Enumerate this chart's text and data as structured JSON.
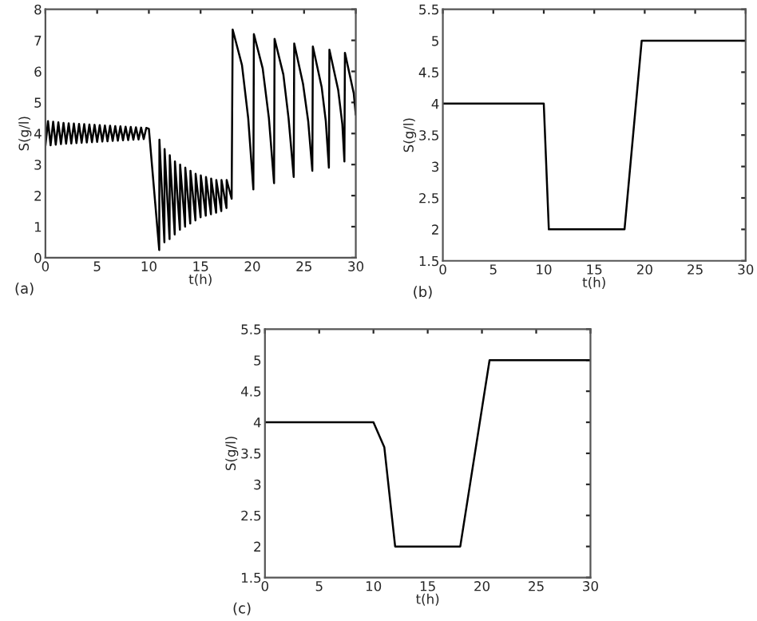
{
  "chart_data": [
    {
      "type": "line",
      "xlabel": "t(h)",
      "ylabel": "S(g/l)",
      "annotations": [
        "(a)"
      ],
      "xlim": [
        0,
        30
      ],
      "ylim": [
        0,
        8
      ],
      "xticks": [
        0,
        5,
        10,
        15,
        20,
        25,
        30
      ],
      "yticks": [
        0,
        1,
        2,
        3,
        4,
        5,
        6,
        7,
        8
      ],
      "grid": false,
      "legend": false,
      "series": [
        {
          "color": "#000000",
          "x": [
            0,
            0.25,
            0.5,
            0.75,
            1,
            1.25,
            1.5,
            1.75,
            2,
            2.25,
            2.5,
            2.75,
            3,
            3.25,
            3.5,
            3.75,
            4,
            4.25,
            4.5,
            4.75,
            5,
            5.25,
            5.5,
            5.75,
            6,
            6.25,
            6.5,
            6.75,
            7,
            7.25,
            7.5,
            7.75,
            8,
            8.25,
            8.5,
            8.75,
            9,
            9.25,
            9.5,
            9.75,
            10,
            11,
            11.02,
            11.5,
            11.52,
            12,
            12.02,
            12.5,
            12.52,
            13,
            13.02,
            13.5,
            13.52,
            14,
            14.02,
            14.5,
            14.52,
            15,
            15.02,
            15.5,
            15.52,
            16,
            16.02,
            16.5,
            16.52,
            17,
            17.02,
            17.5,
            17.52,
            18,
            18.1,
            19,
            19.6,
            20.1,
            20.15,
            21,
            21.6,
            22.1,
            22.15,
            23,
            23.5,
            24,
            24.05,
            24.9,
            25.4,
            25.8,
            25.85,
            26.7,
            27.1,
            27.4,
            27.45,
            28.3,
            28.7,
            28.9,
            28.95,
            29.8,
            30
          ],
          "values": [
            3.6,
            4.4,
            3.62,
            4.38,
            3.64,
            4.36,
            3.66,
            4.34,
            3.67,
            4.33,
            3.68,
            4.32,
            3.69,
            4.31,
            3.7,
            4.3,
            3.71,
            4.29,
            3.72,
            4.28,
            3.73,
            4.27,
            3.74,
            4.26,
            3.75,
            4.25,
            3.76,
            4.24,
            3.77,
            4.23,
            3.78,
            4.22,
            3.79,
            4.21,
            3.8,
            4.2,
            3.81,
            4.19,
            3.82,
            4.18,
            4.15,
            0.25,
            3.8,
            0.5,
            3.5,
            0.6,
            3.3,
            0.75,
            3.1,
            0.9,
            3.0,
            1.0,
            2.9,
            1.1,
            2.8,
            1.2,
            2.7,
            1.3,
            2.65,
            1.35,
            2.6,
            1.4,
            2.55,
            1.45,
            2.5,
            1.5,
            2.5,
            1.6,
            2.5,
            1.9,
            7.35,
            6.2,
            4.5,
            2.2,
            7.2,
            6.1,
            4.5,
            2.4,
            7.05,
            5.9,
            4.5,
            2.6,
            6.9,
            5.6,
            4.4,
            2.8,
            6.8,
            5.5,
            4.4,
            2.9,
            6.7,
            5.4,
            4.3,
            3.1,
            6.6,
            5.3,
            4.6
          ]
        }
      ]
    },
    {
      "type": "line",
      "xlabel": "t(h)",
      "ylabel": "S(g/l)",
      "annotations": [
        "(b)"
      ],
      "xlim": [
        0,
        30
      ],
      "ylim": [
        1.5,
        5.5
      ],
      "xticks": [
        0,
        5,
        10,
        15,
        20,
        25,
        30
      ],
      "yticks": [
        1.5,
        2,
        2.5,
        3,
        3.5,
        4,
        4.5,
        5,
        5.5
      ],
      "grid": false,
      "legend": false,
      "series": [
        {
          "color": "#000000",
          "x": [
            0,
            10,
            10.5,
            18,
            19.7,
            30
          ],
          "values": [
            4,
            4,
            2,
            2,
            5,
            5
          ]
        }
      ]
    },
    {
      "type": "line",
      "xlabel": "t(h)",
      "ylabel": "S(g/l)",
      "annotations": [
        "(c)"
      ],
      "xlim": [
        0,
        30
      ],
      "ylim": [
        1.5,
        5.5
      ],
      "xticks": [
        0,
        5,
        10,
        15,
        20,
        25,
        30
      ],
      "yticks": [
        1.5,
        2,
        2.5,
        3,
        3.5,
        4,
        4.5,
        5,
        5.5
      ],
      "grid": false,
      "legend": false,
      "series": [
        {
          "color": "#000000",
          "x": [
            0,
            10,
            11,
            12,
            18,
            20.7,
            30
          ],
          "values": [
            4,
            4,
            3.6,
            2,
            2,
            5,
            5
          ]
        }
      ]
    }
  ]
}
